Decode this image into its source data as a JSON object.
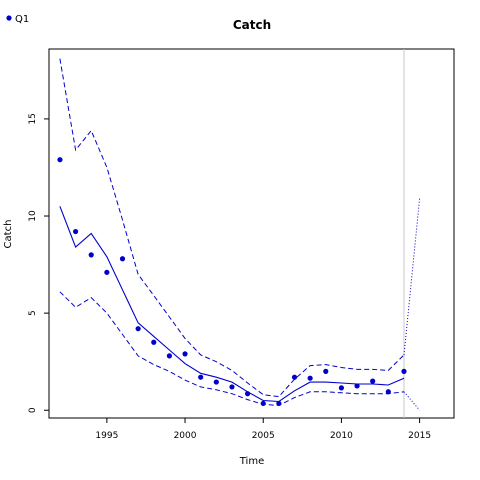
{
  "chart_data": {
    "type": "line",
    "title": "Catch",
    "xlabel": "Time",
    "ylabel": "Catch",
    "xlim": [
      1991.3,
      2017.2
    ],
    "ylim": [
      -0.4,
      18.6
    ],
    "x_ticks": [
      "1995",
      "2000",
      "2005",
      "2010",
      "2015"
    ],
    "y_ticks": [
      "0",
      "5",
      "10",
      "15"
    ],
    "grid": false,
    "legend": {
      "position": "top-left",
      "entries": [
        "Q1"
      ]
    },
    "colors": {
      "series": "#0000CD",
      "vline": "#C8C8C8"
    },
    "vline_x": 2014,
    "observed": {
      "name": "Q1",
      "x": [
        1992,
        1993,
        1994,
        1995,
        1996,
        1997,
        1998,
        1999,
        2000,
        2001,
        2002,
        2003,
        2004,
        2005,
        2006,
        2007,
        2008,
        2009,
        2010,
        2011,
        2012,
        2013,
        2014
      ],
      "y": [
        12.9,
        9.2,
        8.0,
        7.1,
        7.8,
        4.2,
        3.5,
        2.8,
        2.9,
        1.7,
        1.45,
        1.2,
        0.85,
        0.35,
        0.35,
        1.7,
        1.65,
        2.0,
        1.15,
        1.25,
        1.5,
        0.95,
        2.0
      ]
    },
    "fit": {
      "x": [
        1992,
        1993,
        1994,
        1995,
        1996,
        1997,
        1998,
        1999,
        2000,
        2001,
        2002,
        2003,
        2004,
        2005,
        2006,
        2007,
        2008,
        2009,
        2010,
        2011,
        2012,
        2013,
        2014
      ],
      "y": [
        10.5,
        8.4,
        9.1,
        7.9,
        6.2,
        4.5,
        3.8,
        3.1,
        2.4,
        1.9,
        1.7,
        1.45,
        0.95,
        0.5,
        0.45,
        1.0,
        1.45,
        1.45,
        1.4,
        1.35,
        1.35,
        1.3,
        1.65
      ]
    },
    "upper": {
      "x": [
        1992,
        1993,
        1994,
        1995,
        1996,
        1997,
        1998,
        1999,
        2000,
        2001,
        2002,
        2003,
        2004,
        2005,
        2006,
        2007,
        2008,
        2009,
        2010,
        2011,
        2012,
        2013,
        2014
      ],
      "y": [
        18.1,
        13.4,
        14.4,
        12.5,
        9.8,
        7.0,
        5.9,
        4.8,
        3.7,
        2.85,
        2.5,
        2.05,
        1.4,
        0.8,
        0.7,
        1.6,
        2.3,
        2.35,
        2.2,
        2.1,
        2.1,
        2.05,
        2.85
      ]
    },
    "lower": {
      "x": [
        1992,
        1993,
        1994,
        1995,
        1996,
        1997,
        1998,
        1999,
        2000,
        2001,
        2002,
        2003,
        2004,
        2005,
        2006,
        2007,
        2008,
        2009,
        2010,
        2011,
        2012,
        2013,
        2014
      ],
      "y": [
        6.1,
        5.3,
        5.8,
        5.0,
        3.9,
        2.8,
        2.35,
        2.0,
        1.55,
        1.2,
        1.05,
        0.85,
        0.55,
        0.3,
        0.25,
        0.65,
        0.95,
        0.95,
        0.9,
        0.85,
        0.85,
        0.85,
        0.95
      ]
    },
    "projection_upper": {
      "x": [
        2014,
        2015
      ],
      "y": [
        2.85,
        10.9
      ]
    },
    "projection_lower": {
      "x": [
        2014,
        2015
      ],
      "y": [
        0.95,
        0.0
      ]
    }
  }
}
